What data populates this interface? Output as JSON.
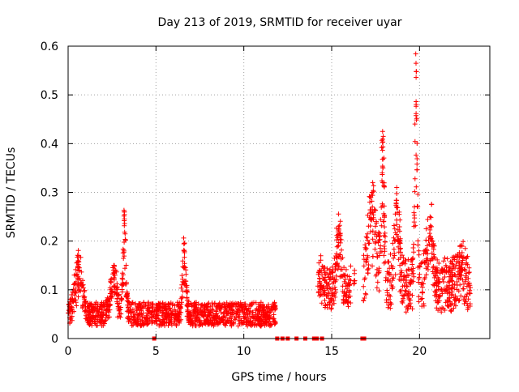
{
  "chart_data": {
    "type": "scatter",
    "title": "Day 213 of 2019, SRMTID for receiver uyar",
    "xlabel": "GPS time / hours",
    "ylabel": "SRMTID / TECUs",
    "xlim": [
      0,
      24
    ],
    "ylim": [
      0,
      0.6
    ],
    "xticks": [
      0,
      5,
      10,
      15,
      20
    ],
    "yticks": [
      0,
      0.1,
      0.2,
      0.3,
      0.4,
      0.5,
      0.6
    ],
    "xtick_labels": [
      "0",
      "5",
      "10",
      "15",
      "20"
    ],
    "ytick_labels": [
      "0",
      "0.1",
      "0.2",
      "0.3",
      "0.4",
      "0.5",
      "0.6"
    ],
    "grid": true,
    "marker": "+",
    "color": "#ff0000",
    "series": [
      {
        "name": "SRMTID",
        "segments": [
          {
            "t0": 0.0,
            "t1": 11.8,
            "base": 0.05,
            "spread": 0.035
          },
          {
            "t0": 14.2,
            "t1": 16.1,
            "base": 0.1,
            "spread": 0.06
          },
          {
            "t0": 16.8,
            "t1": 22.9,
            "base": 0.11,
            "spread": 0.08
          }
        ],
        "peaks": [
          {
            "t": 0.6,
            "y": 0.168,
            "w": 0.3
          },
          {
            "t": 2.6,
            "y": 0.15,
            "w": 0.25
          },
          {
            "t": 3.2,
            "y": 0.26,
            "w": 0.12
          },
          {
            "t": 6.6,
            "y": 0.195,
            "w": 0.15
          },
          {
            "t": 14.3,
            "y": 0.14,
            "w": 0.3
          },
          {
            "t": 15.4,
            "y": 0.23,
            "w": 0.2
          },
          {
            "t": 16.3,
            "y": 0.14,
            "w": 0.2
          },
          {
            "t": 17.3,
            "y": 0.3,
            "w": 0.35
          },
          {
            "t": 17.9,
            "y": 0.425,
            "w": 0.12
          },
          {
            "t": 18.7,
            "y": 0.31,
            "w": 0.2
          },
          {
            "t": 19.8,
            "y": 0.565,
            "w": 0.1
          },
          {
            "t": 20.6,
            "y": 0.25,
            "w": 0.25
          },
          {
            "t": 22.4,
            "y": 0.155,
            "w": 0.3
          }
        ],
        "zero_points": [
          4.9,
          11.9,
          12.2,
          12.5,
          13.0,
          13.5,
          14.0,
          14.15,
          14.45,
          16.75,
          16.85
        ]
      }
    ]
  }
}
